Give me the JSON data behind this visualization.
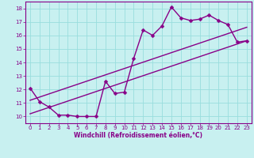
{
  "xlabel": "Windchill (Refroidissement éolien,°C)",
  "ylabel": "",
  "bg_color": "#c8f0f0",
  "line_color": "#880088",
  "grid_color": "#99dddd",
  "xlim": [
    -0.5,
    23.5
  ],
  "ylim": [
    9.5,
    18.5
  ],
  "xticks": [
    0,
    1,
    2,
    3,
    4,
    5,
    6,
    7,
    8,
    9,
    10,
    11,
    12,
    13,
    14,
    15,
    16,
    17,
    18,
    19,
    20,
    21,
    22,
    23
  ],
  "yticks": [
    10,
    11,
    12,
    13,
    14,
    15,
    16,
    17,
    18
  ],
  "line1_x": [
    0,
    1,
    2,
    3,
    4,
    5,
    6,
    7,
    8,
    9,
    10,
    11,
    12,
    13,
    14,
    15,
    16,
    17,
    18,
    19,
    20,
    21,
    22,
    23
  ],
  "line1_y": [
    12.1,
    11.1,
    10.7,
    10.1,
    10.1,
    10.0,
    10.0,
    10.0,
    12.6,
    11.7,
    11.8,
    14.3,
    16.4,
    16.0,
    16.7,
    18.1,
    17.3,
    17.1,
    17.2,
    17.5,
    17.1,
    16.8,
    15.5,
    15.6
  ],
  "line2_x": [
    0,
    23
  ],
  "line2_y": [
    10.2,
    15.6
  ],
  "line3_x": [
    0,
    23
  ],
  "line3_y": [
    11.2,
    16.6
  ],
  "marker_size": 2.5,
  "line_width": 1.0,
  "tick_fontsize": 5.0,
  "xlabel_fontsize": 5.5
}
